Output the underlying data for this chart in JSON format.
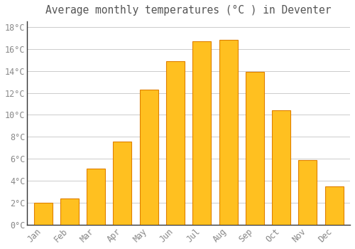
{
  "title": "Average monthly temperatures (°C ) in Deventer",
  "months": [
    "Jan",
    "Feb",
    "Mar",
    "Apr",
    "May",
    "Jun",
    "Jul",
    "Aug",
    "Sep",
    "Oct",
    "Nov",
    "Dec"
  ],
  "values": [
    2.0,
    2.4,
    5.1,
    7.6,
    12.3,
    14.9,
    16.7,
    16.8,
    13.9,
    10.4,
    5.9,
    3.5
  ],
  "bar_color": "#FFC020",
  "bar_edge_color": "#E08000",
  "background_color": "#FFFFFF",
  "grid_color": "#CCCCCC",
  "text_color": "#888888",
  "spine_color": "#333333",
  "ylim": [
    0,
    18.5
  ],
  "yticks": [
    0,
    2,
    4,
    6,
    8,
    10,
    12,
    14,
    16,
    18
  ],
  "title_fontsize": 10.5,
  "tick_fontsize": 8.5,
  "title_color": "#555555"
}
